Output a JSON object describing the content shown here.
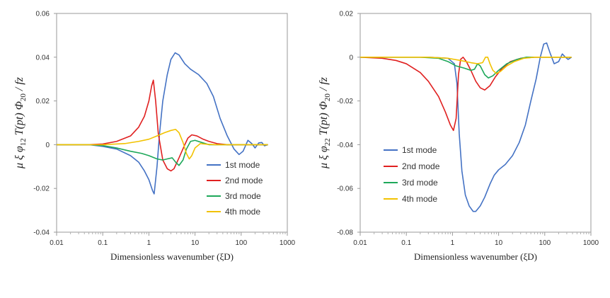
{
  "chart_data": [
    {
      "type": "line",
      "xscale": "log",
      "xlim": [
        0.01,
        1000
      ],
      "ylim": [
        -0.04,
        0.06
      ],
      "x_ticks": [
        0.01,
        0.1,
        1,
        10,
        100,
        1000
      ],
      "x_tick_labels": [
        "0.01",
        "0.1",
        "1",
        "10",
        "100",
        "1000"
      ],
      "y_ticks": [
        -0.04,
        -0.02,
        0,
        0.02,
        0.04,
        0.06
      ],
      "y_tick_labels": [
        "-0.04",
        "-0.02",
        "0",
        "0.02",
        "0.04",
        "0.06"
      ],
      "xlabel": "Dimensionless wavenumber (ξD)",
      "ylabel": "μ ξ φ12 T(pt) Φ20 / fz",
      "grid": false,
      "legend": "bottom-right",
      "series": [
        {
          "name": "1st mode",
          "color": "#4472C4",
          "points": [
            [
              0.01,
              0
            ],
            [
              0.05,
              0
            ],
            [
              0.1,
              -0.0008
            ],
            [
              0.2,
              -0.002
            ],
            [
              0.4,
              -0.005
            ],
            [
              0.6,
              -0.008
            ],
            [
              0.8,
              -0.012
            ],
            [
              1.0,
              -0.016
            ],
            [
              1.2,
              -0.021
            ],
            [
              1.3,
              -0.0225
            ],
            [
              1.5,
              -0.01
            ],
            [
              1.7,
              0.005
            ],
            [
              2,
              0.02
            ],
            [
              2.5,
              0.032
            ],
            [
              3,
              0.039
            ],
            [
              3.7,
              0.042
            ],
            [
              4.5,
              0.041
            ],
            [
              6,
              0.037
            ],
            [
              8,
              0.0345
            ],
            [
              12,
              0.032
            ],
            [
              18,
              0.028
            ],
            [
              25,
              0.022
            ],
            [
              35,
              0.012
            ],
            [
              50,
              0.004
            ],
            [
              70,
              -0.002
            ],
            [
              90,
              -0.0045
            ],
            [
              110,
              -0.003
            ],
            [
              140,
              0.002
            ],
            [
              170,
              0.0005
            ],
            [
              200,
              -0.0015
            ],
            [
              240,
              0.0008
            ],
            [
              280,
              0.001
            ],
            [
              320,
              -0.0005
            ],
            [
              380,
              0
            ]
          ]
        },
        {
          "name": "2nd mode",
          "color": "#E02020",
          "points": [
            [
              0.01,
              0
            ],
            [
              0.05,
              0
            ],
            [
              0.1,
              0.0003
            ],
            [
              0.2,
              0.0015
            ],
            [
              0.4,
              0.004
            ],
            [
              0.6,
              0.008
            ],
            [
              0.8,
              0.013
            ],
            [
              1.0,
              0.02
            ],
            [
              1.15,
              0.027
            ],
            [
              1.25,
              0.0295
            ],
            [
              1.4,
              0.02
            ],
            [
              1.6,
              0.005
            ],
            [
              2,
              -0.007
            ],
            [
              2.5,
              -0.011
            ],
            [
              3,
              -0.012
            ],
            [
              3.5,
              -0.011
            ],
            [
              4.5,
              -0.006
            ],
            [
              6,
              0
            ],
            [
              7,
              0.003
            ],
            [
              8.5,
              0.0045
            ],
            [
              11,
              0.004
            ],
            [
              15,
              0.0025
            ],
            [
              20,
              0.0015
            ],
            [
              30,
              0.0005
            ],
            [
              50,
              0
            ],
            [
              100,
              0
            ],
            [
              380,
              0
            ]
          ]
        },
        {
          "name": "3rd mode",
          "color": "#1EA85A",
          "points": [
            [
              0.01,
              0
            ],
            [
              0.05,
              0
            ],
            [
              0.1,
              -0.0004
            ],
            [
              0.2,
              -0.0015
            ],
            [
              0.4,
              -0.003
            ],
            [
              0.7,
              -0.004
            ],
            [
              1,
              -0.005
            ],
            [
              1.5,
              -0.0065
            ],
            [
              2,
              -0.007
            ],
            [
              2.5,
              -0.0065
            ],
            [
              3.2,
              -0.006
            ],
            [
              3.8,
              -0.008
            ],
            [
              4.5,
              -0.0095
            ],
            [
              5.5,
              -0.007
            ],
            [
              6.5,
              -0.002
            ],
            [
              8,
              0.0015
            ],
            [
              10,
              0.002
            ],
            [
              14,
              0.001
            ],
            [
              20,
              0
            ],
            [
              40,
              0
            ],
            [
              100,
              0
            ],
            [
              380,
              0
            ]
          ]
        },
        {
          "name": "4th mode",
          "color": "#F2C200",
          "points": [
            [
              0.01,
              0
            ],
            [
              0.1,
              0
            ],
            [
              0.3,
              0.0005
            ],
            [
              0.6,
              0.0015
            ],
            [
              1,
              0.0025
            ],
            [
              1.5,
              0.004
            ],
            [
              2.2,
              0.0055
            ],
            [
              3,
              0.0065
            ],
            [
              3.8,
              0.007
            ],
            [
              4.5,
              0.0055
            ],
            [
              5.5,
              0.001
            ],
            [
              6.5,
              -0.004
            ],
            [
              7.5,
              -0.0065
            ],
            [
              8.5,
              -0.005
            ],
            [
              10,
              -0.0015
            ],
            [
              13,
              0.0005
            ],
            [
              18,
              0.0002
            ],
            [
              30,
              0
            ],
            [
              100,
              0
            ],
            [
              380,
              0
            ]
          ]
        }
      ]
    },
    {
      "type": "line",
      "xscale": "log",
      "xlim": [
        0.01,
        1000
      ],
      "ylim": [
        -0.08,
        0.02
      ],
      "x_ticks": [
        0.01,
        0.1,
        1,
        10,
        100,
        1000
      ],
      "x_tick_labels": [
        "0.01",
        "0.1",
        "1",
        "10",
        "100",
        "1000"
      ],
      "y_ticks": [
        -0.08,
        -0.06,
        -0.04,
        -0.02,
        0,
        0.02
      ],
      "y_tick_labels": [
        "-0.08",
        "-0.06",
        "-0.04",
        "-0.02",
        "0",
        "0.02"
      ],
      "xlabel": "Dimensionless wavenumber (ξD)",
      "ylabel": "μ ξ φ22 T(pt) Φ20 / fz",
      "grid": false,
      "legend": "bottom-left",
      "series": [
        {
          "name": "1st mode",
          "color": "#4472C4",
          "points": [
            [
              0.01,
              0
            ],
            [
              0.3,
              0
            ],
            [
              0.8,
              -0.0005
            ],
            [
              1.1,
              -0.003
            ],
            [
              1.25,
              -0.012
            ],
            [
              1.4,
              -0.035
            ],
            [
              1.6,
              -0.052
            ],
            [
              1.9,
              -0.063
            ],
            [
              2.3,
              -0.068
            ],
            [
              2.8,
              -0.0705
            ],
            [
              3.2,
              -0.0705
            ],
            [
              4,
              -0.068
            ],
            [
              5,
              -0.064
            ],
            [
              6.5,
              -0.058
            ],
            [
              8,
              -0.054
            ],
            [
              10,
              -0.0515
            ],
            [
              14,
              -0.049
            ],
            [
              20,
              -0.045
            ],
            [
              28,
              -0.039
            ],
            [
              38,
              -0.031
            ],
            [
              50,
              -0.02
            ],
            [
              65,
              -0.01
            ],
            [
              80,
              0
            ],
            [
              95,
              0.006
            ],
            [
              110,
              0.0065
            ],
            [
              130,
              0.002
            ],
            [
              160,
              -0.003
            ],
            [
              200,
              -0.002
            ],
            [
              240,
              0.0015
            ],
            [
              280,
              0
            ],
            [
              320,
              -0.001
            ],
            [
              380,
              0
            ]
          ]
        },
        {
          "name": "2nd mode",
          "color": "#E02020",
          "points": [
            [
              0.01,
              0
            ],
            [
              0.03,
              -0.0005
            ],
            [
              0.06,
              -0.0015
            ],
            [
              0.1,
              -0.003
            ],
            [
              0.2,
              -0.007
            ],
            [
              0.3,
              -0.011
            ],
            [
              0.5,
              -0.018
            ],
            [
              0.7,
              -0.025
            ],
            [
              0.9,
              -0.031
            ],
            [
              1.05,
              -0.0335
            ],
            [
              1.2,
              -0.028
            ],
            [
              1.35,
              -0.008
            ],
            [
              1.5,
              -0.001
            ],
            [
              1.7,
              0
            ],
            [
              2,
              -0.002
            ],
            [
              2.5,
              -0.006
            ],
            [
              3.2,
              -0.011
            ],
            [
              4,
              -0.014
            ],
            [
              5,
              -0.015
            ],
            [
              6.5,
              -0.013
            ],
            [
              8.5,
              -0.009
            ],
            [
              12,
              -0.005
            ],
            [
              18,
              -0.002
            ],
            [
              30,
              -0.0005
            ],
            [
              60,
              0
            ],
            [
              380,
              0
            ]
          ]
        },
        {
          "name": "3rd mode",
          "color": "#1EA85A",
          "points": [
            [
              0.01,
              0
            ],
            [
              0.2,
              0
            ],
            [
              0.5,
              -0.0005
            ],
            [
              0.8,
              -0.002
            ],
            [
              1.2,
              -0.004
            ],
            [
              1.8,
              -0.005
            ],
            [
              2.5,
              -0.006
            ],
            [
              3,
              -0.0055
            ],
            [
              3.5,
              -0.003
            ],
            [
              4,
              -0.004
            ],
            [
              5,
              -0.008
            ],
            [
              6,
              -0.0095
            ],
            [
              7.5,
              -0.0085
            ],
            [
              10,
              -0.006
            ],
            [
              15,
              -0.003
            ],
            [
              25,
              -0.001
            ],
            [
              40,
              0
            ],
            [
              380,
              0
            ]
          ]
        },
        {
          "name": "4th mode",
          "color": "#F2C200",
          "points": [
            [
              0.01,
              0
            ],
            [
              0.3,
              0
            ],
            [
              0.8,
              -0.0005
            ],
            [
              1.5,
              -0.0015
            ],
            [
              2.5,
              -0.0025
            ],
            [
              3.5,
              -0.003
            ],
            [
              4.5,
              -0.0025
            ],
            [
              5.2,
              0
            ],
            [
              5.8,
              0
            ],
            [
              6.5,
              -0.003
            ],
            [
              7.5,
              -0.006
            ],
            [
              9,
              -0.0075
            ],
            [
              11,
              -0.0065
            ],
            [
              15,
              -0.004
            ],
            [
              22,
              -0.002
            ],
            [
              35,
              -0.0005
            ],
            [
              60,
              0
            ],
            [
              380,
              0
            ]
          ]
        }
      ]
    }
  ]
}
